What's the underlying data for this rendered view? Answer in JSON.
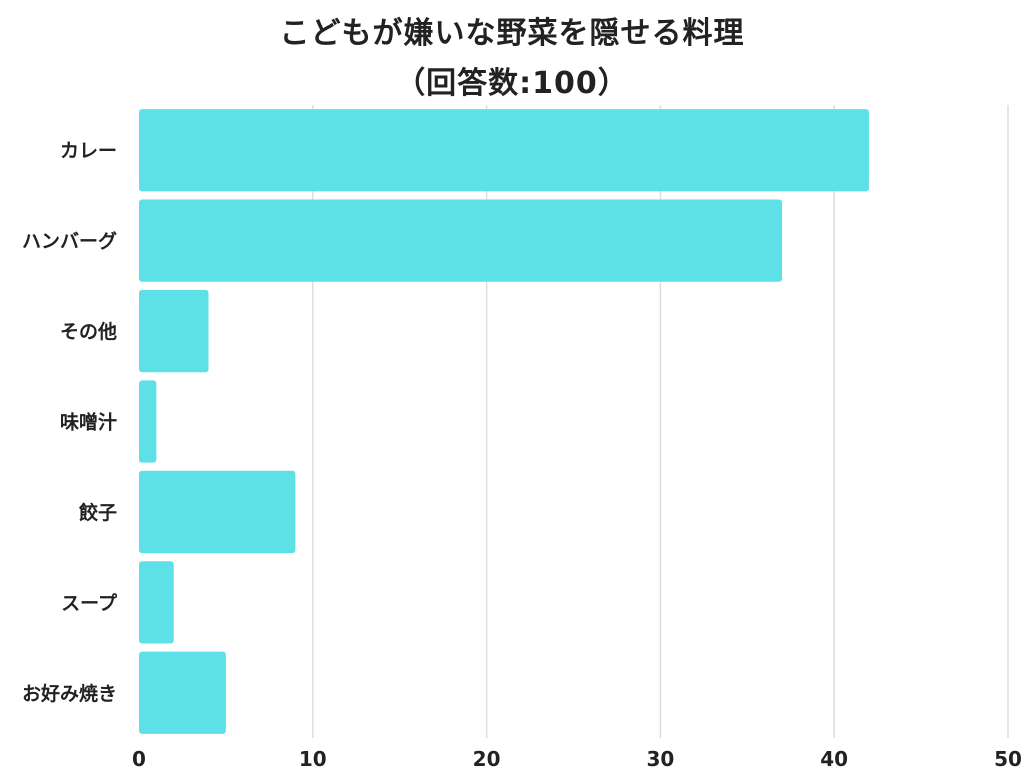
{
  "chart_data": {
    "type": "bar",
    "orientation": "horizontal",
    "title": "こどもが嫌いな野菜を隠せる料理",
    "subtitle": "（回答数:100）",
    "categories": [
      "カレー",
      "ハンバーグ",
      "その他",
      "味噌汁",
      "餃子",
      "スープ",
      "お好み焼き"
    ],
    "values": [
      42,
      37,
      4,
      1,
      9,
      2,
      5
    ],
    "xlim": [
      0,
      50
    ],
    "xticks": [
      0,
      10,
      20,
      30,
      40,
      50
    ],
    "xlabel": "",
    "ylabel": "",
    "grid": "vertical",
    "bar_color": "#5ee1e6"
  }
}
